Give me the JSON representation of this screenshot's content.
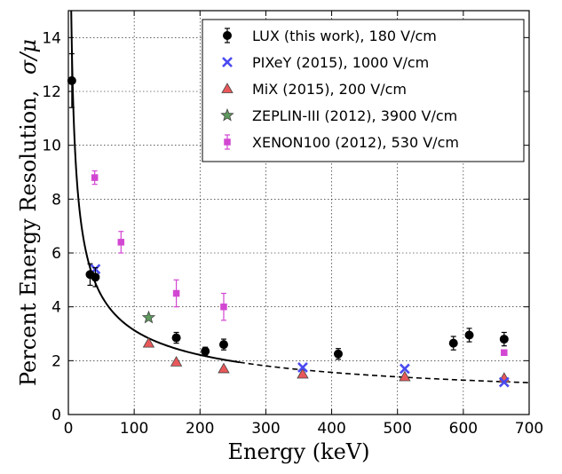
{
  "chart_data": {
    "type": "scatter",
    "xlabel": "Energy (keV)",
    "ylabel": "Percent Energy Resolution,",
    "ylabel_math": "σ/μ",
    "xlim": [
      0,
      700
    ],
    "ylim": [
      0,
      15
    ],
    "x_ticks": [
      0,
      100,
      200,
      300,
      400,
      500,
      600,
      700
    ],
    "y_ticks": [
      0,
      2,
      4,
      6,
      8,
      10,
      12,
      14
    ],
    "grid": true,
    "legend_position": "top-right",
    "series": [
      {
        "name": "LUX (this work), 180 V/cm",
        "marker": "circle",
        "color": "#000000",
        "points": [
          {
            "x": 5.2,
            "y": 12.4,
            "err": 1.0
          },
          {
            "x": 33,
            "y": 5.2,
            "err": 0.4
          },
          {
            "x": 41,
            "y": 5.1,
            "err": 0.35
          },
          {
            "x": 164,
            "y": 2.85,
            "err": 0.2
          },
          {
            "x": 208,
            "y": 2.35,
            "err": 0.15
          },
          {
            "x": 236,
            "y": 2.6,
            "err": 0.2
          },
          {
            "x": 410,
            "y": 2.25,
            "err": 0.2
          },
          {
            "x": 585,
            "y": 2.65,
            "err": 0.25
          },
          {
            "x": 609,
            "y": 2.95,
            "err": 0.25
          },
          {
            "x": 662,
            "y": 2.8,
            "err": 0.25
          }
        ]
      },
      {
        "name": "PIXeY (2015), 1000 V/cm",
        "marker": "x",
        "color": "#4a4af0",
        "points": [
          {
            "x": 41,
            "y": 5.4
          },
          {
            "x": 356,
            "y": 1.75
          },
          {
            "x": 511,
            "y": 1.7
          },
          {
            "x": 662,
            "y": 1.2
          }
        ]
      },
      {
        "name": "MiX (2015), 200 V/cm",
        "marker": "triangle",
        "color": "#e8585a",
        "points": [
          {
            "x": 122,
            "y": 2.65
          },
          {
            "x": 164,
            "y": 1.95
          },
          {
            "x": 236,
            "y": 1.7
          },
          {
            "x": 356,
            "y": 1.5
          },
          {
            "x": 511,
            "y": 1.4
          },
          {
            "x": 662,
            "y": 1.35
          }
        ]
      },
      {
        "name": "ZEPLIN-III (2012), 3900 V/cm",
        "marker": "star",
        "color": "#5e9a5e",
        "points": [
          {
            "x": 122,
            "y": 3.6
          }
        ]
      },
      {
        "name": "XENON100 (2012), 530 V/cm",
        "marker": "square",
        "color": "#d247d2",
        "points": [
          {
            "x": 40,
            "y": 8.8,
            "err": 0.25
          },
          {
            "x": 80,
            "y": 6.4,
            "err": 0.4
          },
          {
            "x": 164,
            "y": 4.5,
            "err": 0.5
          },
          {
            "x": 236,
            "y": 4.0,
            "err": 0.5
          },
          {
            "x": 662,
            "y": 2.3,
            "err": 0.1
          }
        ]
      }
    ],
    "fit": {
      "model": "a/sqrt(E)",
      "a": 31.3,
      "solid_until": 260,
      "x_end": 700
    }
  }
}
